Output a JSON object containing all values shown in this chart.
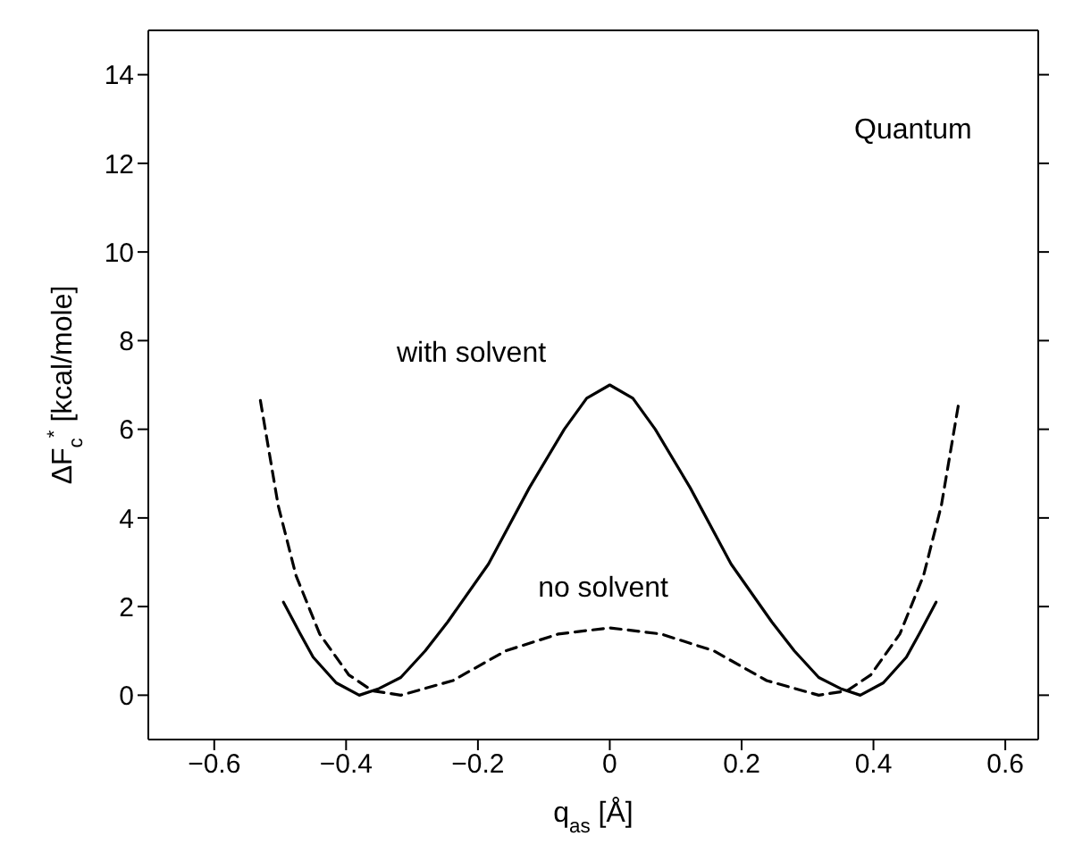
{
  "chart_data": {
    "type": "line",
    "xlabel": "q$_{as}$ [Å]",
    "ylabel": "ΔF$_{c}$$^{*}$ [kcal/mole]",
    "xlim": [
      -0.7,
      0.65
    ],
    "ylim": [
      -1,
      15
    ],
    "xticks": [
      -0.6,
      -0.4,
      -0.2,
      0,
      0.2,
      0.4,
      0.6
    ],
    "yticks": [
      0,
      2,
      4,
      6,
      8,
      10,
      12,
      14
    ],
    "marker": "none",
    "annotations": [
      "Quantum"
    ],
    "series": [
      {
        "name": "with solvent",
        "color": "#000000",
        "line_style": "solid",
        "x": [
          -0.495,
          -0.47,
          -0.45,
          -0.415,
          -0.38,
          -0.35,
          -0.317,
          -0.28,
          -0.246,
          -0.184,
          -0.122,
          -0.069,
          -0.035,
          0,
          0.035,
          0.069,
          0.122,
          0.184,
          0.246,
          0.28,
          0.317,
          0.35,
          0.38,
          0.415,
          0.45,
          0.47,
          0.495
        ],
        "values": [
          2.1,
          1.4,
          0.86,
          0.28,
          0,
          0.15,
          0.4,
          1.0,
          1.65,
          2.96,
          4.68,
          6.0,
          6.7,
          7.0,
          6.7,
          6.0,
          4.68,
          2.96,
          1.65,
          1.0,
          0.4,
          0.15,
          0,
          0.28,
          0.86,
          1.4,
          2.1
        ]
      },
      {
        "name": "no solvent",
        "color": "#000000",
        "line_style": "dashed",
        "x": [
          -0.53,
          -0.503,
          -0.476,
          -0.44,
          -0.396,
          -0.36,
          -0.317,
          -0.238,
          -0.158,
          -0.078,
          0,
          0.078,
          0.158,
          0.238,
          0.317,
          0.36,
          0.396,
          0.44,
          0.476,
          0.503,
          0.53
        ],
        "values": [
          6.65,
          4.28,
          2.7,
          1.38,
          0.46,
          0.1,
          0,
          0.33,
          1.0,
          1.38,
          1.52,
          1.38,
          1.0,
          0.33,
          0,
          0.1,
          0.46,
          1.38,
          2.7,
          4.28,
          6.65
        ]
      }
    ]
  }
}
